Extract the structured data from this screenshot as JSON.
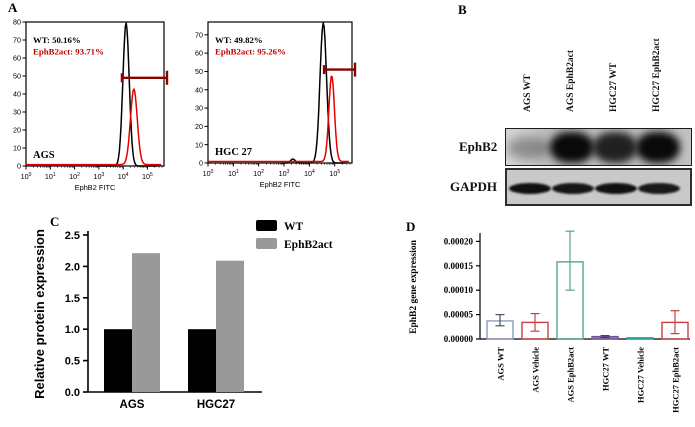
{
  "panels": {
    "A": {
      "label": "A"
    },
    "B": {
      "label": "B",
      "lane_labels": [
        "AGS WT",
        "AGS EphB2act",
        "HGC27 WT",
        "HGC27 EphB2act"
      ],
      "rows": [
        {
          "name": "EphB2",
          "band_intensities": [
            0.3,
            0.95,
            0.82,
            0.95
          ]
        },
        {
          "name": "GAPDH",
          "band_intensities": [
            0.95,
            0.92,
            0.95,
            0.9
          ]
        }
      ]
    },
    "C": {
      "label": "C"
    },
    "D": {
      "label": "D"
    }
  },
  "chart_data": [
    {
      "id": "flow-ags",
      "type": "flow-histogram",
      "panel": "A",
      "cell_line": "AGS",
      "xlabel": "EphB2 FITC",
      "x_decades": [
        0,
        1,
        2,
        3,
        4,
        5
      ],
      "ymax": 80,
      "ytick_max": 80,
      "ytick_step": 10,
      "annotations": [
        {
          "text": "WT: 50.16%",
          "color": "#000000"
        },
        {
          "text": "EphB2act: 93.71%",
          "color": "#c00000"
        }
      ],
      "series": [
        {
          "name": "WT",
          "color": "#000000",
          "peak_log": 4.12,
          "sigma_log": 0.13,
          "height": 79.5,
          "from": 2.9,
          "to": 5.45,
          "baseline": 0
        },
        {
          "name": "EphB2act",
          "color": "#e60000",
          "peak_log": 4.44,
          "sigma_log": 0.14,
          "height": 42,
          "from": 0,
          "to": 5.6,
          "baseline": 0.8
        }
      ],
      "gate": {
        "y": 49,
        "from_log": 3.95,
        "color": "#8b0000"
      }
    },
    {
      "id": "flow-hgc27",
      "type": "flow-histogram",
      "panel": "A",
      "cell_line": "HGC 27",
      "xlabel": "EphB2 FITC",
      "x_decades": [
        0,
        1,
        2,
        3,
        4,
        5
      ],
      "ymax": 77,
      "ytick_max": 70,
      "ytick_step": 10,
      "annotations": [
        {
          "text": "WT: 49.82%",
          "color": "#000000"
        },
        {
          "text": "EphB2act: 95.26%",
          "color": "#c00000"
        }
      ],
      "series": [
        {
          "name": "WT",
          "color": "#000000",
          "peak_log": 4.55,
          "sigma_log": 0.13,
          "height": 76.5,
          "from": 2.9,
          "to": 5.45,
          "baseline": 0,
          "bumps": [
            {
              "log": 3.35,
              "height": 2.2
            }
          ]
        },
        {
          "name": "EphB2act",
          "color": "#e60000",
          "peak_log": 4.88,
          "sigma_log": 0.11,
          "height": 47,
          "from": 0,
          "to": 5.6,
          "baseline": 0.8
        }
      ],
      "gate": {
        "y": 51,
        "from_log": 4.58,
        "color": "#8b0000"
      }
    },
    {
      "id": "protein-bar",
      "type": "bar",
      "panel": "C",
      "ylabel": "Relative protein expression",
      "ylim": [
        0,
        2.5
      ],
      "ytick_step": 0.5,
      "categories": [
        "AGS",
        "HGC27"
      ],
      "series": [
        {
          "name": "WT",
          "color": "#000000",
          "values": [
            1.0,
            1.0
          ]
        },
        {
          "name": "EphB2act",
          "color": "#999999",
          "values": [
            2.21,
            2.09
          ]
        }
      ],
      "legend_position": "top-right"
    },
    {
      "id": "gene-bar",
      "type": "bar-error",
      "panel": "D",
      "ylabel": "EphB2 gene expression",
      "ylim": [
        0,
        0.00022
      ],
      "yticks": [
        {
          "v": 0,
          "label": "0.00000"
        },
        {
          "v": 5e-05,
          "label": "0.00005"
        },
        {
          "v": 0.0001,
          "label": "0.00010"
        },
        {
          "v": 0.00015,
          "label": "0.00015"
        },
        {
          "v": 0.0002,
          "label": "0.00020"
        }
      ],
      "bars": [
        {
          "label": "AGS WT",
          "value": 3.7e-05,
          "err_low": 2.7e-05,
          "err_high": 5e-05,
          "outline": "#8f9bbf",
          "fill": "none",
          "whisker": "#4a4f63"
        },
        {
          "label": "AGS Vehicle",
          "value": 3.4e-05,
          "err_low": 1.6e-05,
          "err_high": 5.2e-05,
          "outline": "#c9413f",
          "fill": "none",
          "whisker": "#c9413f"
        },
        {
          "label": "AGS EphB2act",
          "value": 0.000158,
          "err_low": 0.0001,
          "err_high": 0.000221,
          "outline": "#55a48c",
          "fill": "none",
          "whisker": "#55a48c"
        },
        {
          "label": "HGC27 WT",
          "value": 5e-06,
          "err_low": 3e-06,
          "err_high": 7e-06,
          "outline": "#6f5694",
          "fill": "#9b7cb8",
          "whisker": "#4d3a6b"
        },
        {
          "label": "HGC27 Vehicle",
          "value": 1.2e-06,
          "err_low": 1.2e-06,
          "err_high": 1.2e-06,
          "outline": "#29a3a3",
          "fill": "#29a3a3",
          "whisker": "#29a3a3"
        },
        {
          "label": "HGC27 EphB2act",
          "value": 3.4e-05,
          "err_low": 1.1e-05,
          "err_high": 5.8e-05,
          "outline": "#c9413f",
          "fill": "none",
          "whisker": "#c9413f"
        }
      ]
    }
  ]
}
